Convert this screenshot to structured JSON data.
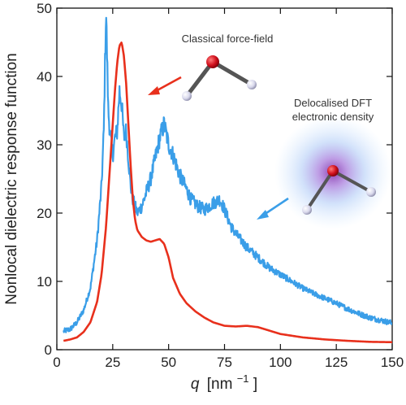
{
  "chart_data": {
    "type": "line",
    "title": "",
    "xlabel_symbol": "q",
    "xlabel_unit": "[nm",
    "xlabel_sup": "−1",
    "xlabel_close": "]",
    "ylabel": "Nonlocal dielectric response function",
    "xlim": [
      0,
      150
    ],
    "ylim": [
      0,
      50
    ],
    "xticks": [
      0,
      25,
      50,
      75,
      100,
      125,
      150
    ],
    "yticks": [
      0,
      10,
      20,
      30,
      40,
      50
    ],
    "grid": false,
    "legend": "none",
    "series": [
      {
        "color": "#3a9ee8",
        "x": [
          3,
          6,
          9,
          12,
          15,
          18,
          20,
          21,
          22,
          23,
          24,
          25,
          26,
          27,
          28,
          29,
          30,
          31,
          32,
          33,
          34,
          36,
          38,
          40,
          42,
          44,
          46,
          48,
          50,
          52,
          55,
          58,
          60,
          63,
          66,
          70,
          73,
          75,
          78,
          80,
          85,
          90,
          95,
          100,
          105,
          110,
          115,
          120,
          125,
          130,
          135,
          140,
          145,
          150
        ],
        "y": [
          2.7,
          3.0,
          4.0,
          5.8,
          9.0,
          16.0,
          24.0,
          32.0,
          50.0,
          35.0,
          31.0,
          28.5,
          31.0,
          32.0,
          38.0,
          36.0,
          31.0,
          32.0,
          28.0,
          24.0,
          22.0,
          20.0,
          21.0,
          23.0,
          25.0,
          28.0,
          31.0,
          33.0,
          30.0,
          28.5,
          25.5,
          23.5,
          22.0,
          21.0,
          20.5,
          21.5,
          22.0,
          20.5,
          18.0,
          17.0,
          15.0,
          13.5,
          12.0,
          11.0,
          10.0,
          9.0,
          8.2,
          7.5,
          6.8,
          6.0,
          5.3,
          4.7,
          4.3,
          3.9
        ]
      },
      {
        "color": "#e8301c",
        "x": [
          3,
          6,
          9,
          12,
          15,
          18,
          20,
          22,
          24,
          25,
          26,
          27,
          28,
          29,
          30,
          31,
          32,
          33,
          34,
          35,
          36,
          38,
          40,
          42,
          44,
          46,
          48,
          50,
          52,
          55,
          58,
          62,
          66,
          70,
          75,
          80,
          85,
          90,
          95,
          100,
          110,
          120,
          130,
          140,
          150
        ],
        "y": [
          1.3,
          1.5,
          1.8,
          2.6,
          4.0,
          7.0,
          11.0,
          18.0,
          28.0,
          33.0,
          38.0,
          42.0,
          44.5,
          45.0,
          43.0,
          39.0,
          33.0,
          27.0,
          22.0,
          19.0,
          17.5,
          16.5,
          16.0,
          15.8,
          16.0,
          16.2,
          15.5,
          13.5,
          10.5,
          8.2,
          6.8,
          5.6,
          4.7,
          4.0,
          3.5,
          3.4,
          3.5,
          3.3,
          2.8,
          2.3,
          1.8,
          1.5,
          1.3,
          1.15,
          1.1
        ]
      }
    ],
    "annotations": {
      "classical": "Classical force-field",
      "dft_line1": "Delocalised DFT",
      "dft_line2": "electronic density"
    }
  }
}
